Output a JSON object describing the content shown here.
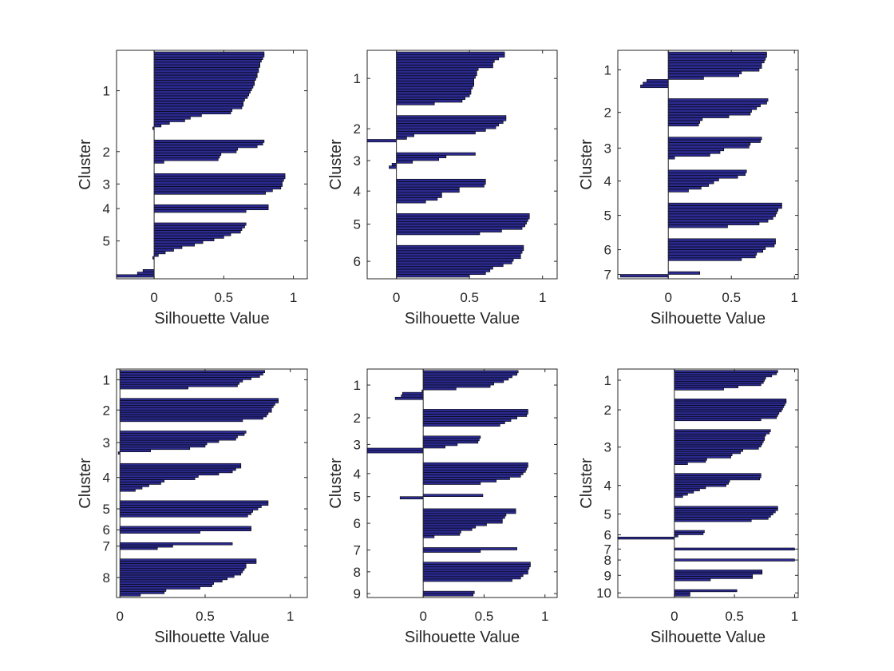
{
  "chart_data": [
    {
      "type": "bar",
      "orientation": "horizontal",
      "xlabel": "Silhouette Value",
      "ylabel": "Cluster",
      "xlim": [
        -0.27,
        1.1
      ],
      "xticks": [
        0,
        0.5,
        1
      ],
      "xtick_labels": [
        "0",
        "0.5",
        "1"
      ],
      "clusters": [
        {
          "label": "1",
          "values": [
            0.79,
            0.79,
            0.78,
            0.77,
            0.76,
            0.76,
            0.75,
            0.75,
            0.74,
            0.74,
            0.73,
            0.72,
            0.72,
            0.71,
            0.7,
            0.69,
            0.68,
            0.67,
            0.65,
            0.64,
            0.64,
            0.63,
            0.56,
            0.55,
            0.34,
            0.26,
            0.22,
            0.11,
            0.05,
            -0.01
          ]
        },
        {
          "label": "2",
          "values": [
            0.79,
            0.78,
            0.74,
            0.6,
            0.59,
            0.48,
            0.47,
            0.46,
            0.07
          ]
        },
        {
          "label": "3",
          "values": [
            0.94,
            0.94,
            0.93,
            0.92,
            0.92,
            0.91,
            0.85,
            0.8
          ]
        },
        {
          "label": "4",
          "values": [
            0.82,
            0.82,
            0.66
          ]
        },
        {
          "label": "5",
          "values": [
            0.66,
            0.65,
            0.63,
            0.62,
            0.55,
            0.5,
            0.43,
            0.35,
            0.29,
            0.2,
            0.14,
            0.08,
            0.03,
            -0.01
          ]
        },
        {
          "label": "",
          "values": [
            -0.08,
            -0.12,
            -0.27
          ]
        }
      ]
    },
    {
      "type": "bar",
      "orientation": "horizontal",
      "xlabel": "Silhouette Value",
      "ylabel": "Cluster",
      "xlim": [
        -0.2,
        1.1
      ],
      "xticks": [
        0,
        0.5,
        1
      ],
      "xtick_labels": [
        "0",
        "0.5",
        "1"
      ],
      "clusters": [
        {
          "label": "1",
          "values": [
            0.74,
            0.74,
            0.7,
            0.67,
            0.66,
            0.66,
            0.56,
            0.55,
            0.55,
            0.54,
            0.53,
            0.53,
            0.53,
            0.52,
            0.51,
            0.51,
            0.5,
            0.47,
            0.45,
            0.26
          ]
        },
        {
          "label": "2",
          "values": [
            0.75,
            0.75,
            0.73,
            0.7,
            0.68,
            0.61,
            0.54,
            0.12,
            0.07,
            -0.2
          ]
        },
        {
          "label": "3",
          "values": [
            0.54,
            0.34,
            0.29,
            0.11,
            -0.03,
            -0.05
          ]
        },
        {
          "label": "4",
          "values": [
            0.61,
            0.61,
            0.6,
            0.43,
            0.43,
            0.31,
            0.31,
            0.28,
            0.2
          ]
        },
        {
          "label": "5",
          "values": [
            0.91,
            0.91,
            0.9,
            0.89,
            0.88,
            0.86,
            0.72,
            0.57
          ]
        },
        {
          "label": "6",
          "values": [
            0.87,
            0.87,
            0.86,
            0.85,
            0.85,
            0.8,
            0.79,
            0.73,
            0.66,
            0.64,
            0.61,
            0.5
          ]
        }
      ]
    },
    {
      "type": "bar",
      "orientation": "horizontal",
      "xlabel": "Silhouette Value",
      "ylabel": "Cluster",
      "xlim": [
        -0.4,
        1.03
      ],
      "xticks": [
        0,
        0.5,
        1
      ],
      "xtick_labels": [
        "0",
        "0.5",
        "1"
      ],
      "clusters": [
        {
          "label": "1",
          "values": [
            0.78,
            0.78,
            0.77,
            0.76,
            0.74,
            0.74,
            0.72,
            0.58,
            0.56,
            0.28,
            -0.17,
            -0.2,
            -0.22
          ]
        },
        {
          "label": "2",
          "values": [
            0.79,
            0.78,
            0.73,
            0.7,
            0.66,
            0.65,
            0.48,
            0.27,
            0.25,
            0.24
          ]
        },
        {
          "label": "3",
          "values": [
            0.74,
            0.73,
            0.65,
            0.64,
            0.44,
            0.41,
            0.33,
            0.05
          ]
        },
        {
          "label": "4",
          "values": [
            0.62,
            0.61,
            0.55,
            0.4,
            0.36,
            0.32,
            0.26,
            0.16
          ]
        },
        {
          "label": "5",
          "values": [
            0.9,
            0.9,
            0.87,
            0.86,
            0.85,
            0.83,
            0.79,
            0.72,
            0.47
          ]
        },
        {
          "label": "6",
          "values": [
            0.85,
            0.85,
            0.84,
            0.77,
            0.75,
            0.7,
            0.69,
            0.58
          ]
        },
        {
          "label": "7",
          "values": [
            0.25,
            -0.38
          ]
        }
      ]
    },
    {
      "type": "bar",
      "orientation": "horizontal",
      "xlabel": "Silhouette Value",
      "ylabel": "Cluster",
      "xlim": [
        -0.02,
        1.1
      ],
      "xticks": [
        0,
        0.5,
        1
      ],
      "xtick_labels": [
        "0",
        "0.5",
        "1"
      ],
      "clusters": [
        {
          "label": "1",
          "values": [
            0.85,
            0.84,
            0.82,
            0.77,
            0.72,
            0.7,
            0.69,
            0.4
          ]
        },
        {
          "label": "2",
          "values": [
            0.93,
            0.93,
            0.91,
            0.9,
            0.89,
            0.89,
            0.87,
            0.86,
            0.84,
            0.72
          ]
        },
        {
          "label": "3",
          "values": [
            0.74,
            0.73,
            0.69,
            0.68,
            0.58,
            0.51,
            0.5,
            0.41,
            0.18,
            -0.01
          ]
        },
        {
          "label": "4",
          "values": [
            0.71,
            0.71,
            0.68,
            0.66,
            0.58,
            0.46,
            0.44,
            0.26,
            0.24,
            0.17,
            0.13,
            0.09
          ]
        },
        {
          "label": "5",
          "values": [
            0.87,
            0.87,
            0.83,
            0.81,
            0.78,
            0.77,
            0.75
          ]
        },
        {
          "label": "6",
          "values": [
            0.77,
            0.77,
            0.47
          ]
        },
        {
          "label": "7",
          "values": [
            0.66,
            0.31,
            0.22
          ]
        },
        {
          "label": "8",
          "values": [
            0.8,
            0.8,
            0.74,
            0.74,
            0.73,
            0.72,
            0.71,
            0.67,
            0.63,
            0.6,
            0.55,
            0.54,
            0.47,
            0.27,
            0.26,
            0.12
          ]
        }
      ]
    },
    {
      "type": "bar",
      "orientation": "horizontal",
      "xlabel": "Silhouette Value",
      "ylabel": "Cluster",
      "xlim": [
        -0.46,
        1.1
      ],
      "xticks": [
        0,
        0.5,
        1
      ],
      "xtick_labels": [
        "0",
        "0.5",
        "1"
      ],
      "clusters": [
        {
          "label": "1",
          "values": [
            0.78,
            0.77,
            0.73,
            0.7,
            0.66,
            0.58,
            0.55,
            0.27,
            -0.01,
            -0.17,
            -0.18,
            -0.23
          ]
        },
        {
          "label": "2",
          "values": [
            0.86,
            0.86,
            0.85,
            0.77,
            0.72,
            0.67,
            0.63
          ]
        },
        {
          "label": "3",
          "values": [
            0.47,
            0.46,
            0.45,
            0.28,
            0.18,
            -0.46,
            -0.46
          ]
        },
        {
          "label": "4",
          "values": [
            0.86,
            0.86,
            0.85,
            0.84,
            0.82,
            0.8,
            0.71,
            0.6,
            0.47
          ]
        },
        {
          "label": "5",
          "values": [
            0.49,
            -0.19
          ]
        },
        {
          "label": "6",
          "values": [
            0.76,
            0.76,
            0.68,
            0.67,
            0.65,
            0.65,
            0.52,
            0.43,
            0.4,
            0.31,
            0.3,
            0.09
          ]
        },
        {
          "label": "7",
          "values": [
            0.77,
            0.47
          ]
        },
        {
          "label": "8",
          "values": [
            0.88,
            0.88,
            0.87,
            0.86,
            0.86,
            0.82,
            0.8,
            0.73
          ]
        },
        {
          "label": "9",
          "values": [
            0.42,
            0.41
          ]
        }
      ]
    },
    {
      "type": "bar",
      "orientation": "horizontal",
      "xlabel": "Silhouette Value",
      "ylabel": "Cluster",
      "xlim": [
        -0.47,
        1.03
      ],
      "xticks": [
        0,
        0.5,
        1
      ],
      "xtick_labels": [
        "0",
        "0.5",
        "1"
      ],
      "clusters": [
        {
          "label": "1",
          "values": [
            0.86,
            0.85,
            0.81,
            0.76,
            0.75,
            0.74,
            0.72,
            0.53,
            0.41
          ]
        },
        {
          "label": "2",
          "values": [
            0.93,
            0.93,
            0.92,
            0.91,
            0.9,
            0.89,
            0.87,
            0.86,
            0.85,
            0.72
          ]
        },
        {
          "label": "3",
          "values": [
            0.8,
            0.79,
            0.76,
            0.75,
            0.75,
            0.74,
            0.73,
            0.72,
            0.7,
            0.57,
            0.55,
            0.48,
            0.47,
            0.27,
            0.26,
            0.11
          ]
        },
        {
          "label": "4",
          "values": [
            0.72,
            0.72,
            0.71,
            0.46,
            0.45,
            0.43,
            0.26,
            0.21,
            0.16,
            0.11,
            0.07
          ]
        },
        {
          "label": "5",
          "values": [
            0.86,
            0.86,
            0.84,
            0.82,
            0.8,
            0.78,
            0.64
          ]
        },
        {
          "label": "6",
          "values": [
            0.25,
            0.24,
            0.03,
            -0.47
          ]
        },
        {
          "label": "7",
          "values": [
            1.0
          ]
        },
        {
          "label": "8",
          "values": [
            1.0
          ]
        },
        {
          "label": "9",
          "values": [
            0.73,
            0.73,
            0.65,
            0.65,
            0.3
          ]
        },
        {
          "label": "10",
          "values": [
            0.52,
            0.13,
            0.13
          ]
        }
      ]
    }
  ]
}
